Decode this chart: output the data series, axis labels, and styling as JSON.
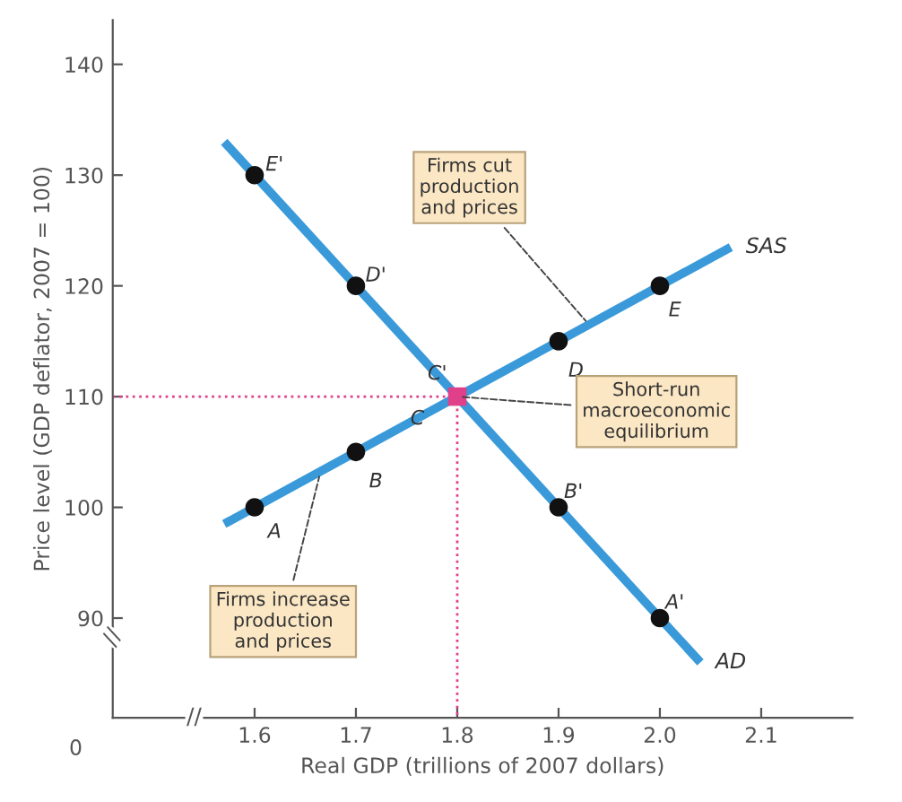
{
  "chart_data": {
    "type": "line",
    "xlabel": "Real GDP (trillions of 2007 dollars)",
    "ylabel": "Price level (GDP deflator, 2007 = 100)",
    "xlim": [
      1.46,
      2.19
    ],
    "ylim": [
      81,
      144
    ],
    "xticks": [
      1.6,
      1.7,
      1.8,
      1.9,
      {
        "value": 2.0,
        "label": "2.0"
      },
      2.1
    ],
    "yticks": [
      90,
      100,
      110,
      120,
      130,
      140
    ],
    "grid": false,
    "legend": false,
    "series": [
      {
        "name": "SAS",
        "color": "#3a9ad9",
        "x": [
          1.57,
          2.07
        ],
        "values": [
          98.5,
          123.5
        ]
      },
      {
        "name": "AD",
        "color": "#3a9ad9",
        "x": [
          1.57,
          2.04
        ],
        "values": [
          133,
          86
        ]
      },
      {
        "type": "scatter",
        "color": "#111111",
        "marker": "circle",
        "x": [
          1.6,
          1.7,
          1.9,
          2.0,
          1.6,
          1.7,
          1.9,
          2.0
        ],
        "values": [
          100,
          105,
          115,
          120,
          130,
          120,
          100,
          90
        ]
      },
      {
        "type": "line",
        "color": "#e0408a",
        "line_style": "dotted",
        "x": [
          1.46,
          1.8,
          1.8
        ],
        "values": [
          110,
          110,
          81
        ]
      },
      {
        "type": "scatter",
        "color": "#e0408a",
        "marker": "square",
        "x": [
          1.8
        ],
        "values": [
          110
        ]
      }
    ],
    "annotations": [
      {
        "text": "A",
        "x": 1.6,
        "y": 100
      },
      {
        "text": "B",
        "x": 1.7,
        "y": 105
      },
      {
        "text": "C",
        "x": 1.8,
        "y": 110
      },
      {
        "text": "D",
        "x": 1.9,
        "y": 115
      },
      {
        "text": "E",
        "x": 2.0,
        "y": 120
      },
      {
        "text": "E'",
        "x": 1.6,
        "y": 130
      },
      {
        "text": "D'",
        "x": 1.7,
        "y": 120
      },
      {
        "text": "C'",
        "x": 1.8,
        "y": 110
      },
      {
        "text": "B'",
        "x": 1.9,
        "y": 100
      },
      {
        "text": "A'",
        "x": 2.0,
        "y": 90
      },
      {
        "text": "Firms cut\nproduction\nand prices",
        "x": 1.93,
        "y": 116.5
      },
      {
        "text": "Short-run\nmacroeconomic\nequilibrium",
        "x": 1.8,
        "y": 110
      },
      {
        "text": "Firms increase\nproduction\nand prices",
        "x": 1.665,
        "y": 103.2
      },
      "0",
      "//",
      "//"
    ]
  }
}
